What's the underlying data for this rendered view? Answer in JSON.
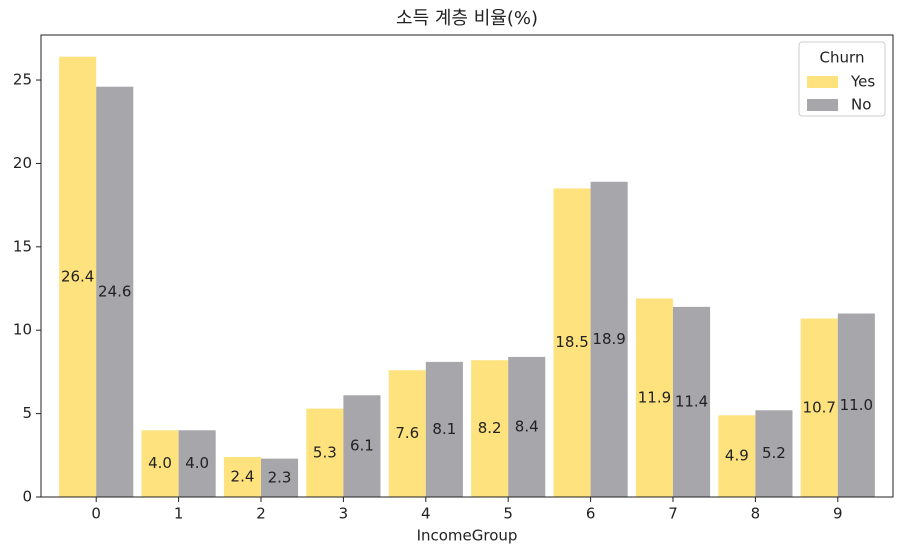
{
  "chart_data": {
    "type": "bar",
    "title": "소득 계층 비율(%)",
    "x_label": "IncomeGroup",
    "categories": [
      "0",
      "1",
      "2",
      "3",
      "4",
      "5",
      "6",
      "7",
      "8",
      "9"
    ],
    "legend_title": "Churn",
    "legend": "upper right",
    "series": [
      {
        "name": "Yes",
        "color": "#fde27e",
        "values": [
          26.4,
          4.0,
          2.4,
          5.3,
          7.6,
          8.2,
          18.5,
          11.9,
          4.9,
          10.7
        ],
        "value_labels": [
          "26.4",
          "4.0",
          "2.4",
          "5.3",
          "7.6",
          "8.2",
          "18.5",
          "11.9",
          "4.9",
          "10.7"
        ]
      },
      {
        "name": "No",
        "color": "#a6a6ab",
        "values": [
          24.6,
          4.0,
          2.3,
          6.1,
          8.1,
          8.4,
          18.9,
          11.4,
          5.2,
          11.0
        ],
        "value_labels": [
          "24.6",
          "4.0",
          "2.3",
          "6.1",
          "8.1",
          "8.4",
          "18.9",
          "11.4",
          "5.2",
          "11.0"
        ]
      }
    ],
    "ylim": [
      0,
      27.7
    ],
    "yticks": [
      0,
      5,
      10,
      15,
      20,
      25
    ],
    "grid": false
  }
}
